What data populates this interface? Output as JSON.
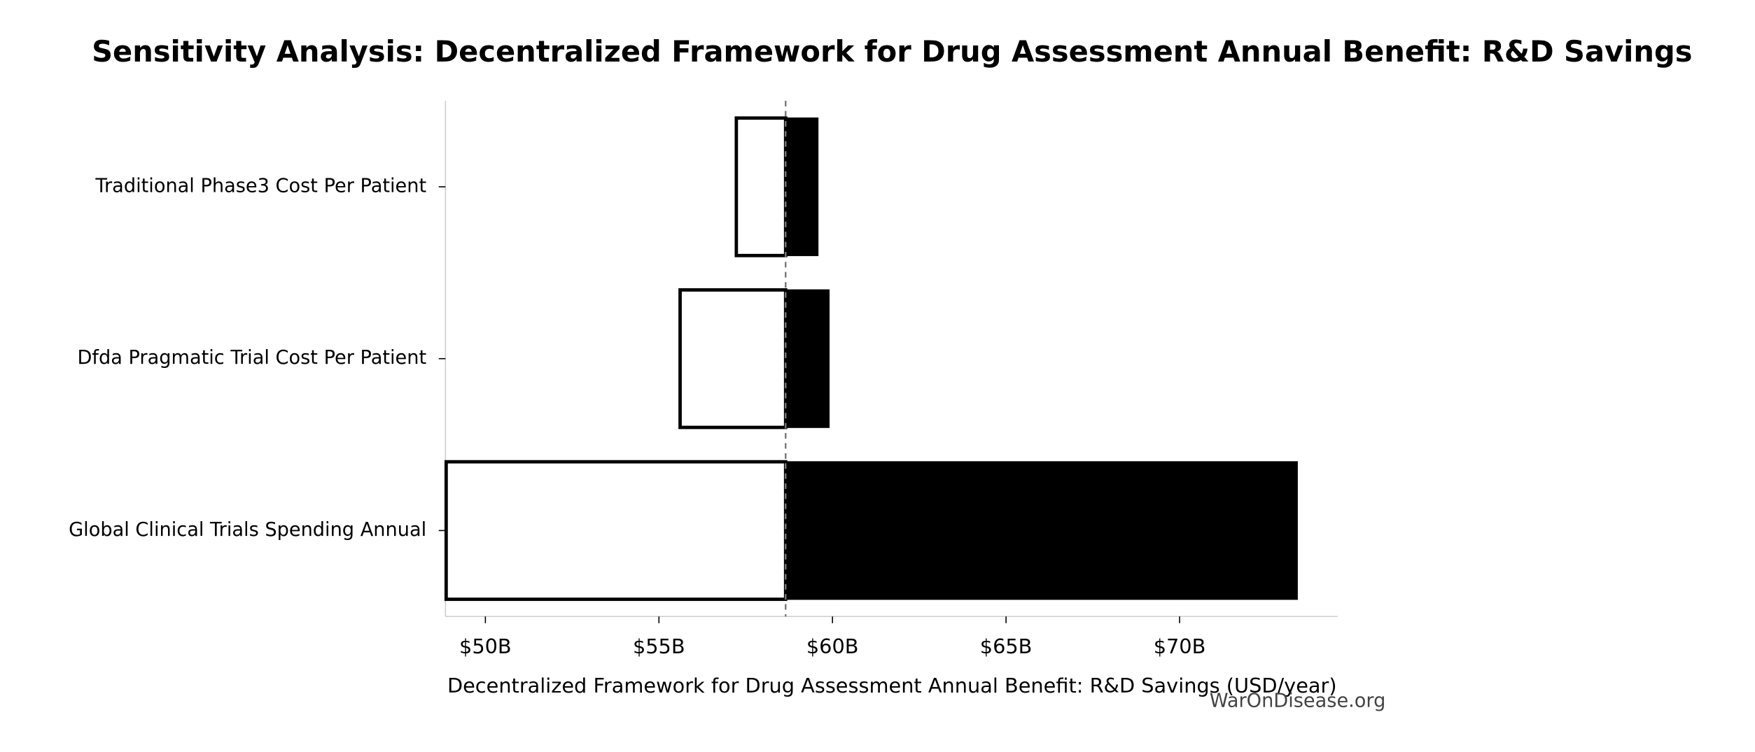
{
  "chart_data": {
    "type": "tornado",
    "title": "Sensitivity Analysis: Decentralized Framework for Drug Assessment Annual Benefit: R&D Savings",
    "xlabel": "Decentralized Framework for Drug Assessment Annual Benefit: R&D Savings (USD/year)",
    "watermark": "WarOnDisease.org",
    "categories": [
      "Traditional Phase3 Cost Per Patient",
      "Dfda Pragmatic Trial Cost Per Patient",
      "Global Clinical Trials Spending Annual"
    ],
    "baseline": 58.65,
    "series": [
      {
        "color": "#ffffff",
        "values": [
          57.23,
          55.61,
          48.87
        ]
      },
      {
        "color": "#000000",
        "values": [
          59.58,
          59.9,
          73.39
        ]
      }
    ],
    "xlim": [
      48.85,
      74.55
    ],
    "xticks": [
      {
        "value": 50,
        "label": "$50B"
      },
      {
        "value": 55,
        "label": "$55B"
      },
      {
        "value": 60,
        "label": "$60B"
      },
      {
        "value": 65,
        "label": "$65B"
      },
      {
        "value": 70,
        "label": "$70B"
      }
    ]
  }
}
